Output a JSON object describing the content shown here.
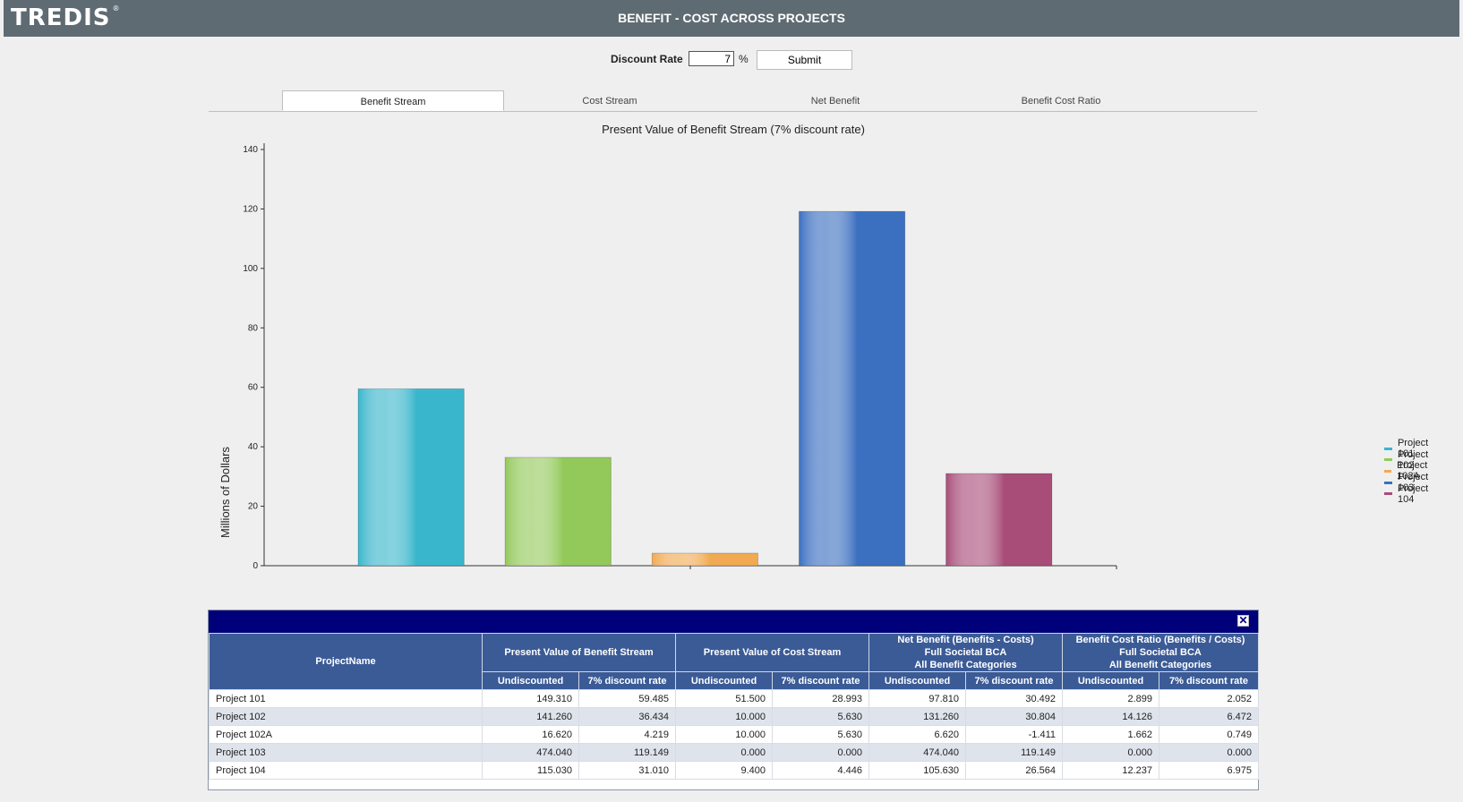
{
  "app": {
    "logo": "TREDIS",
    "logo_mark": "®",
    "title": "BENEFIT - COST ACROSS PROJECTS"
  },
  "controls": {
    "discount_label": "Discount Rate",
    "discount_value": "7",
    "percent": "%",
    "submit_label": "Submit"
  },
  "tabs": [
    {
      "label": "Benefit Stream",
      "active": true
    },
    {
      "label": "Cost Stream",
      "active": false
    },
    {
      "label": "Net Benefit",
      "active": false
    },
    {
      "label": "Benefit Cost Ratio",
      "active": false
    }
  ],
  "chart_data": {
    "type": "bar",
    "title": "Present Value of Benefit Stream (7% discount rate)",
    "ylabel": "Millions of Dollars",
    "ylim": [
      0,
      140
    ],
    "yticks": [
      0,
      20,
      40,
      60,
      80,
      100,
      120,
      140
    ],
    "series": [
      {
        "name": "Project 101",
        "value": 59.485,
        "color": "#3ab6cc"
      },
      {
        "name": "Project 102",
        "value": 36.434,
        "color": "#93c95a"
      },
      {
        "name": "Project 102A",
        "value": 4.219,
        "color": "#f1aa52"
      },
      {
        "name": "Project 103",
        "value": 119.149,
        "color": "#3b6fc0"
      },
      {
        "name": "Project 104",
        "value": 31.01,
        "color": "#a84d78"
      }
    ],
    "legend_position": "right"
  },
  "table": {
    "headers": {
      "name": "ProjectName",
      "groups": [
        "Present Value of Benefit Stream",
        "Present Value of Cost Stream",
        "Net Benefit (Benefits - Costs)\nFull Societal BCA\nAll Benefit Categories",
        "Benefit Cost Ratio (Benefits / Costs)\nFull Societal BCA\nAll Benefit Categories"
      ],
      "sub": [
        "Undiscounted",
        "7% discount rate"
      ]
    },
    "rows": [
      [
        "Project 101",
        "149.310",
        "59.485",
        "51.500",
        "28.993",
        "97.810",
        "30.492",
        "2.899",
        "2.052"
      ],
      [
        "Project 102",
        "141.260",
        "36.434",
        "10.000",
        "5.630",
        "131.260",
        "30.804",
        "14.126",
        "6.472"
      ],
      [
        "Project 102A",
        "16.620",
        "4.219",
        "10.000",
        "5.630",
        "6.620",
        "-1.411",
        "1.662",
        "0.749"
      ],
      [
        "Project 103",
        "474.040",
        "119.149",
        "0.000",
        "0.000",
        "474.040",
        "119.149",
        "0.000",
        "0.000"
      ],
      [
        "Project 104",
        "115.030",
        "31.010",
        "9.400",
        "4.446",
        "105.630",
        "26.564",
        "12.237",
        "6.975"
      ]
    ]
  }
}
